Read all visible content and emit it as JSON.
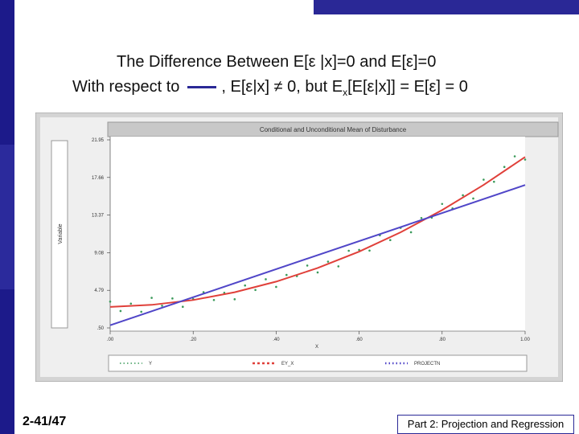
{
  "slide": {
    "title": "The Difference Between E[ε |x]=0 and E[ε]=0",
    "subtitle_lead": "With respect to",
    "subtitle_main": ", E[ε|x] ≠ 0, but E",
    "subtitle_sub": "x",
    "subtitle_tail": "[E[ε|x]] = E[ε] = 0",
    "footer_left": "2-41/47",
    "footer_right": "Part 2: Projection and Regression"
  },
  "chart_data": {
    "type": "scatter",
    "title": "Conditional and Unconditional Mean of Disturbance",
    "xlabel": "X",
    "ylabel": "Variable",
    "xlim": [
      0,
      1
    ],
    "ylim": [
      0.5,
      21.95
    ],
    "xticks": [
      {
        "value": 0,
        "label": ".00"
      },
      {
        "value": 0.2,
        "label": ".20"
      },
      {
        "value": 0.4,
        "label": ".40"
      },
      {
        "value": 0.6,
        "label": ".60"
      },
      {
        "value": 0.8,
        "label": ".80"
      },
      {
        "value": 1,
        "label": "1.00"
      }
    ],
    "yticks": [
      {
        "value": 0.5,
        "label": ".50"
      },
      4.79,
      9.08,
      13.37,
      17.66,
      21.95
    ],
    "series": [
      {
        "name": "Y",
        "color": "#3a9a5a",
        "style": "dots",
        "x": [
          0,
          0.025,
          0.05,
          0.075,
          0.1,
          0.125,
          0.15,
          0.175,
          0.2,
          0.225,
          0.25,
          0.275,
          0.3,
          0.325,
          0.35,
          0.375,
          0.4,
          0.425,
          0.45,
          0.475,
          0.5,
          0.525,
          0.55,
          0.575,
          0.6,
          0.625,
          0.65,
          0.675,
          0.7,
          0.725,
          0.75,
          0.775,
          0.8,
          0.825,
          0.85,
          0.875,
          0.9,
          0.925,
          0.95,
          0.975,
          1
        ],
        "values": [
          3.5,
          2.43,
          3.27,
          2.34,
          3.93,
          3.03,
          3.86,
          2.91,
          3.78,
          4.57,
          3.68,
          4.51,
          3.77,
          5.34,
          4.83,
          6.05,
          5.18,
          6.54,
          6.41,
          7.61,
          6.83,
          8.06,
          7.52,
          9.3,
          9.4,
          9.32,
          11.06,
          10.52,
          11.91,
          11.41,
          13.03,
          13.08,
          14.64,
          14.13,
          15.63,
          15.26,
          17.41,
          17.17,
          18.86,
          20.07,
          19.7
        ]
      },
      {
        "name": "EY_X",
        "color": "#e0403a",
        "style": "line",
        "x": [
          0,
          0.1,
          0.2,
          0.3,
          0.4,
          0.5,
          0.6,
          0.7,
          0.8,
          0.9,
          1
        ],
        "values": [
          2.9,
          3.13,
          3.68,
          4.57,
          5.78,
          7.33,
          9.2,
          11.41,
          13.94,
          16.81,
          20.0
        ]
      },
      {
        "name": "PROJECTN",
        "color": "#5046c8",
        "style": "line",
        "x": [
          0,
          1
        ],
        "values": [
          0.8,
          16.8
        ]
      }
    ]
  }
}
